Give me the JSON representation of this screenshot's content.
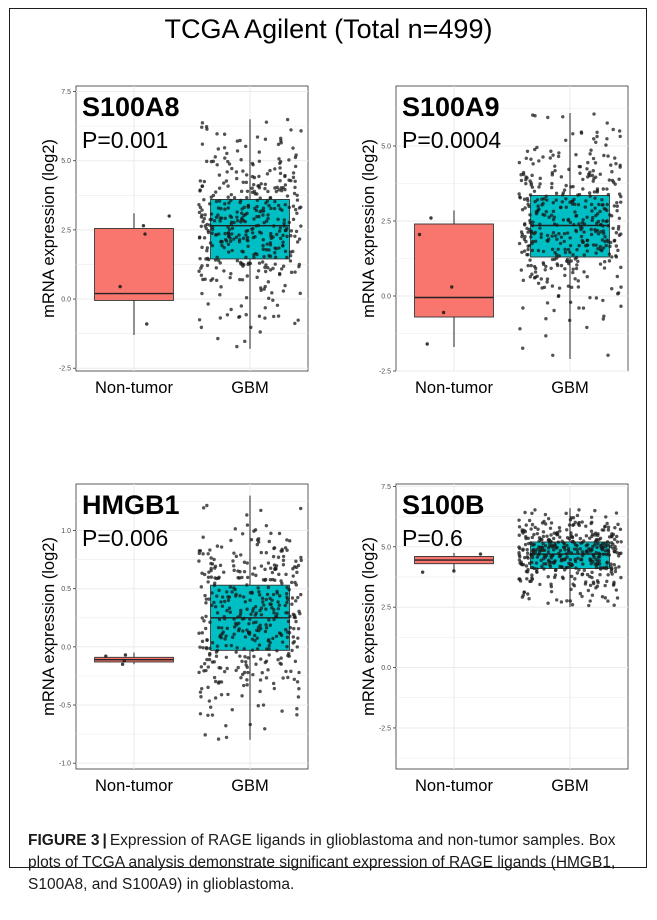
{
  "figure": {
    "title": "TCGA Agilent (Total n=499)",
    "caption_label": "FIGURE 3",
    "caption_text": "Expression of RAGE ligands in glioblastoma and non-tumor samples. Box plots of TCGA analysis demonstrate significant expression of RAGE ligands (HMGB1, S100A8, and S100A9) in glioblastoma."
  },
  "colors": {
    "non_tumor": "#F8766D",
    "gbm": "#00BFC4",
    "points": "#1a1a1a",
    "grid": "#ebebeb"
  },
  "chart_data": [
    {
      "type": "box",
      "gene": "S100A8",
      "pvalue": "P=0.001",
      "ylabel": "mRNA expression (log2)",
      "categories": [
        "Non-tumor",
        "GBM"
      ],
      "yticks": [
        "-2.5",
        "0.0",
        "2.5",
        "5.0",
        "7.5"
      ],
      "ylim": [
        -2.6,
        7.7
      ],
      "boxes": [
        {
          "name": "Non-tumor",
          "min": -1.3,
          "q1": -0.05,
          "median": 0.2,
          "q3": 2.55,
          "max": 3.1
        },
        {
          "name": "GBM",
          "min": -1.8,
          "q1": 1.45,
          "median": 2.65,
          "q3": 3.6,
          "max": 6.5
        }
      ],
      "outliers_non_tumor": [
        2.35,
        0.45,
        2.65,
        3.0,
        -0.9
      ]
    },
    {
      "type": "box",
      "gene": "S100A9",
      "pvalue": "P=0.0004",
      "ylabel": "mRNA expression (log2)",
      "categories": [
        "Non-tumor",
        "GBM"
      ],
      "yticks": [
        "-2.5",
        "0.0",
        "2.5",
        "5.0"
      ],
      "ylim": [
        -2.5,
        7.0
      ],
      "boxes": [
        {
          "name": "Non-tumor",
          "min": -1.7,
          "q1": -0.7,
          "median": -0.05,
          "q3": 2.4,
          "max": 2.85
        },
        {
          "name": "GBM",
          "min": -2.1,
          "q1": 1.3,
          "median": 2.35,
          "q3": 3.35,
          "max": 6.1
        }
      ],
      "outliers_non_tumor": [
        2.05,
        2.6,
        0.3,
        -0.55,
        -1.6
      ]
    },
    {
      "type": "box",
      "gene": "HMGB1",
      "pvalue": "P=0.006",
      "ylabel": "mRNA expression (log2)",
      "categories": [
        "Non-tumor",
        "GBM"
      ],
      "yticks": [
        "-1.0",
        "-0.5",
        "0.0",
        "0.5",
        "1.0"
      ],
      "ylim": [
        -1.05,
        1.4
      ],
      "boxes": [
        {
          "name": "Non-tumor",
          "min": -0.15,
          "q1": -0.13,
          "median": -0.11,
          "q3": -0.09,
          "max": -0.05
        },
        {
          "name": "GBM",
          "min": -0.8,
          "q1": -0.03,
          "median": 0.25,
          "q3": 0.53,
          "max": 1.3
        }
      ],
      "outliers_non_tumor": [
        -0.07,
        -0.15,
        -0.12,
        -0.08
      ]
    },
    {
      "type": "box",
      "gene": "S100B",
      "pvalue": "P=0.6",
      "ylabel": "mRNA expression (log2)",
      "categories": [
        "Non-tumor",
        "GBM"
      ],
      "yticks": [
        "-2.5",
        "0.0",
        "2.5",
        "5.0",
        "7.5"
      ],
      "ylim": [
        -4.2,
        7.6
      ],
      "boxes": [
        {
          "name": "Non-tumor",
          "min": 4.0,
          "q1": 4.3,
          "median": 4.45,
          "q3": 4.6,
          "max": 4.75
        },
        {
          "name": "GBM",
          "min": 2.5,
          "q1": 4.1,
          "median": 4.7,
          "q3": 5.2,
          "max": 6.6
        }
      ],
      "outliers_non_tumor": [
        3.95,
        4.7,
        4.0
      ]
    }
  ]
}
